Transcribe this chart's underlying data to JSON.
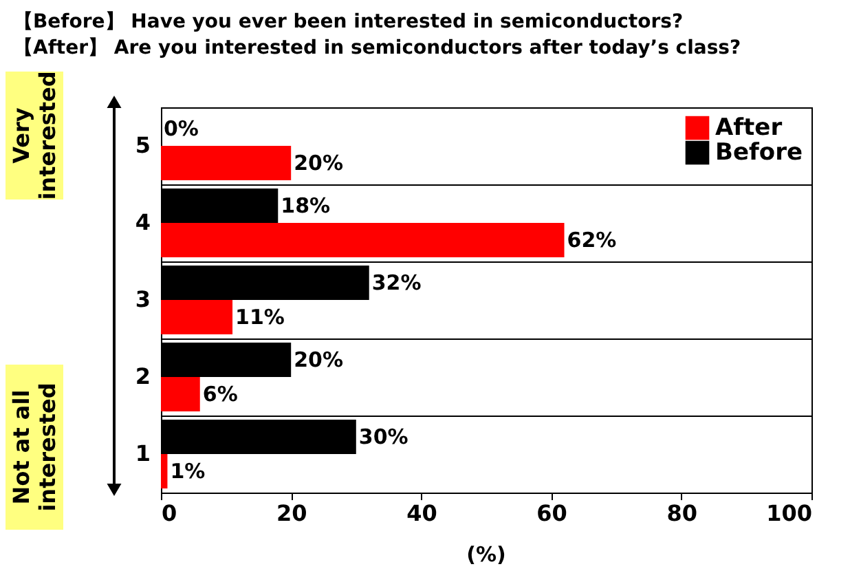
{
  "chart_data": {
    "type": "bar",
    "orientation": "horizontal",
    "title": "【Before】 Have you ever been interested in semiconductors?\n【After】 Are you interested in semiconductors after today’s class?",
    "xlabel": "(%)",
    "categories": [
      "5",
      "4",
      "3",
      "2",
      "1"
    ],
    "series": [
      {
        "name": "Before",
        "color": "#000000",
        "values": [
          0,
          18,
          32,
          20,
          30
        ],
        "value_labels": [
          "0%",
          "18%",
          "32%",
          "20%",
          "30%"
        ]
      },
      {
        "name": "After",
        "color": "#ff0000",
        "values": [
          20,
          62,
          11,
          6,
          1
        ],
        "value_labels": [
          "20%",
          "62%",
          "11%",
          "6%",
          "1%"
        ]
      }
    ],
    "xlim": [
      0,
      100
    ],
    "xticks": [
      0,
      20,
      40,
      60,
      80,
      100
    ],
    "grid": "y",
    "legend": "top right",
    "annotations": [
      "Very interested",
      "Not at all interested"
    ]
  }
}
